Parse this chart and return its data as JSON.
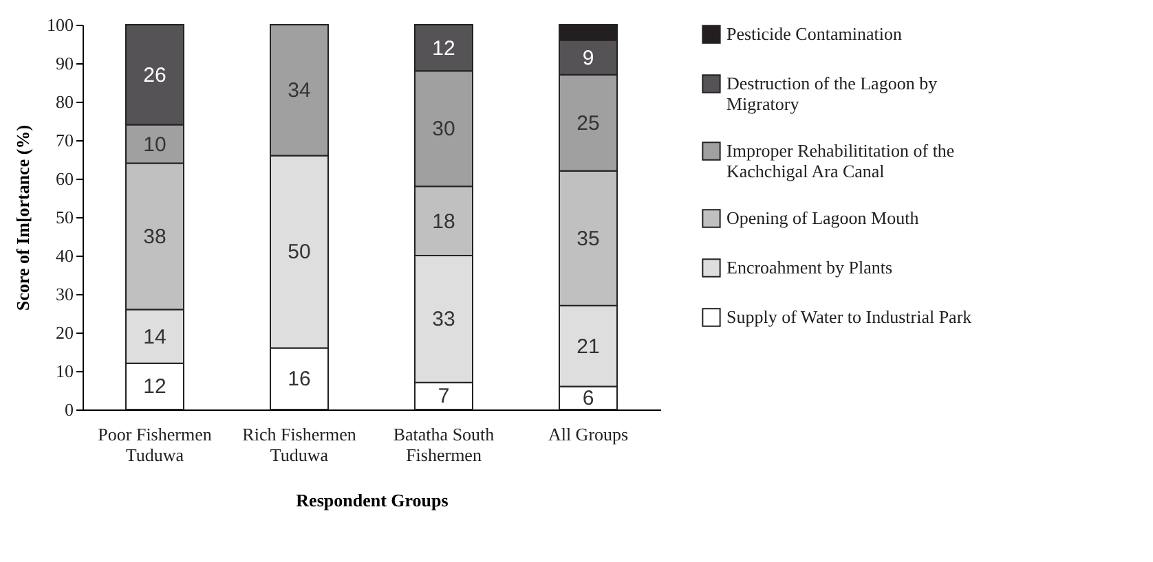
{
  "chart_data": {
    "type": "bar",
    "stacked": true,
    "xlabel": "Respondent Groups",
    "ylabel": "Score of Im[ortance (%)",
    "categories": [
      "Poor Fishermen Tuduwa",
      "Rich Fishermen Tuduwa",
      "Batatha South Fishermen",
      "All Groups"
    ],
    "series": [
      {
        "name": "Supply of Water to Industrial Park",
        "color": "#ffffff",
        "values": [
          12,
          16,
          7,
          6
        ],
        "value_labels": [
          "12",
          "16",
          "7",
          "6"
        ]
      },
      {
        "name": "Encroahment by Plants",
        "color": "#dedede",
        "values": [
          14,
          50,
          33,
          21
        ],
        "value_labels": [
          "14",
          "50",
          "33",
          "21"
        ]
      },
      {
        "name": "Opening of Lagoon Mouth",
        "color": "#c0c0c0",
        "values": [
          38,
          0,
          18,
          35
        ],
        "value_labels": [
          "38",
          null,
          "18",
          "35"
        ]
      },
      {
        "name": "Improper Rehabilititation of the Kachchigal Ara Canal",
        "color": "#a0a0a0",
        "values": [
          10,
          34,
          30,
          25
        ],
        "value_labels": [
          "10",
          "34",
          "30",
          "25"
        ]
      },
      {
        "name": "Destruction of the Lagoon by Migratory",
        "color": "#555355",
        "values": [
          26,
          0,
          12,
          9
        ],
        "value_labels": [
          "26",
          null,
          "12",
          "9"
        ]
      },
      {
        "name": "Pesticide Contamination",
        "color": "#231f20",
        "values": [
          0,
          0,
          0,
          4
        ],
        "value_labels": [
          null,
          null,
          null,
          null
        ]
      }
    ],
    "ylim": [
      0,
      100
    ],
    "yticks": [
      0,
      10,
      20,
      30,
      40,
      50,
      60,
      70,
      80,
      90,
      100
    ],
    "grid": false,
    "legend": "right"
  }
}
